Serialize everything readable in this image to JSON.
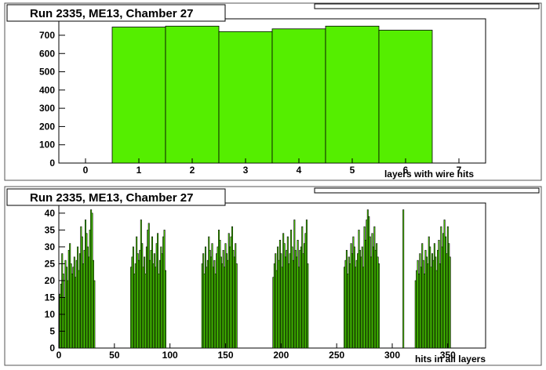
{
  "chart_data": [
    {
      "type": "bar",
      "title": "Run 2335, ME13, Chamber 27",
      "xlabel": "layers with wire hits",
      "ylabel": "",
      "xlim": [
        -0.5,
        7.5
      ],
      "ylim": [
        0,
        790
      ],
      "xticks": [
        0,
        1,
        2,
        3,
        4,
        5,
        6,
        7
      ],
      "yticks": [
        0,
        100,
        200,
        300,
        400,
        500,
        600,
        700
      ],
      "categories": [
        1,
        2,
        3,
        4,
        5,
        6
      ],
      "values": [
        745,
        750,
        720,
        735,
        750,
        728
      ],
      "colors": {
        "fill": "#55ee00",
        "stroke": "#000000"
      }
    },
    {
      "type": "bar",
      "title": "Run 2335, ME13, Chamber 27",
      "xlabel": "hits in all layers",
      "ylabel": "",
      "xlim": [
        0,
        384
      ],
      "ylim": [
        0,
        43
      ],
      "xticks": [
        0,
        50,
        100,
        150,
        200,
        250,
        300,
        350
      ],
      "yticks": [
        0,
        5,
        10,
        15,
        20,
        25,
        30,
        35,
        40
      ],
      "x": [
        1,
        2,
        3,
        4,
        5,
        6,
        7,
        8,
        9,
        10,
        11,
        12,
        13,
        14,
        15,
        16,
        17,
        18,
        19,
        20,
        21,
        22,
        23,
        24,
        25,
        26,
        27,
        28,
        29,
        30,
        31,
        32,
        65,
        66,
        67,
        68,
        69,
        70,
        71,
        72,
        73,
        74,
        75,
        76,
        77,
        78,
        79,
        80,
        81,
        82,
        83,
        84,
        85,
        86,
        87,
        88,
        89,
        90,
        91,
        92,
        93,
        94,
        95,
        96,
        129,
        130,
        131,
        132,
        133,
        134,
        135,
        136,
        137,
        138,
        139,
        140,
        141,
        142,
        143,
        144,
        145,
        146,
        147,
        148,
        149,
        150,
        151,
        152,
        153,
        154,
        155,
        156,
        157,
        158,
        159,
        160,
        193,
        194,
        195,
        196,
        197,
        198,
        199,
        200,
        201,
        202,
        203,
        204,
        205,
        206,
        207,
        208,
        209,
        210,
        211,
        212,
        213,
        214,
        215,
        216,
        217,
        218,
        219,
        220,
        221,
        222,
        223,
        224,
        257,
        258,
        259,
        260,
        261,
        262,
        263,
        264,
        265,
        266,
        267,
        268,
        269,
        270,
        271,
        272,
        273,
        274,
        275,
        276,
        277,
        278,
        279,
        280,
        281,
        282,
        283,
        284,
        285,
        286,
        287,
        288,
        310,
        321,
        322,
        323,
        324,
        325,
        326,
        327,
        328,
        329,
        330,
        331,
        332,
        333,
        334,
        335,
        336,
        337,
        338,
        339,
        340,
        341,
        342,
        343,
        344,
        345,
        346,
        347,
        348,
        349,
        350,
        351,
        352
      ],
      "values": [
        16,
        19,
        28,
        22,
        15,
        26,
        24,
        20,
        29,
        31,
        25,
        22,
        24,
        27,
        21,
        26,
        30,
        23,
        28,
        36,
        33,
        25,
        29,
        38,
        34,
        30,
        27,
        35,
        41,
        40,
        26,
        20,
        24,
        27,
        30,
        22,
        25,
        33,
        28,
        26,
        29,
        38,
        31,
        24,
        27,
        22,
        30,
        35,
        37,
        26,
        29,
        33,
        25,
        28,
        24,
        31,
        34,
        22,
        26,
        30,
        28,
        33,
        35,
        23,
        25,
        28,
        22,
        30,
        24,
        26,
        33,
        29,
        27,
        31,
        24,
        26,
        22,
        28,
        30,
        35,
        32,
        27,
        25,
        29,
        24,
        31,
        28,
        26,
        34,
        30,
        33,
        36,
        29,
        27,
        31,
        25,
        21,
        25,
        28,
        23,
        30,
        26,
        32,
        28,
        24,
        34,
        31,
        27,
        29,
        33,
        25,
        28,
        35,
        30,
        26,
        38,
        29,
        27,
        32,
        24,
        29,
        30,
        36,
        28,
        31,
        34,
        38,
        25,
        24,
        26,
        29,
        22,
        27,
        25,
        31,
        28,
        33,
        30,
        24,
        26,
        28,
        35,
        29,
        27,
        30,
        24,
        36,
        32,
        38,
        41,
        39,
        33,
        27,
        34,
        30,
        36,
        29,
        31,
        27,
        25,
        41,
        20,
        23,
        26,
        22,
        28,
        24,
        31,
        26,
        22,
        29,
        27,
        25,
        33,
        30,
        24,
        28,
        26,
        31,
        27,
        23,
        29,
        32,
        25,
        36,
        30,
        34,
        38,
        33,
        28,
        36,
        31,
        27
      ],
      "colors": {
        "fill": "#55ee00",
        "stroke": "#000000"
      }
    }
  ]
}
